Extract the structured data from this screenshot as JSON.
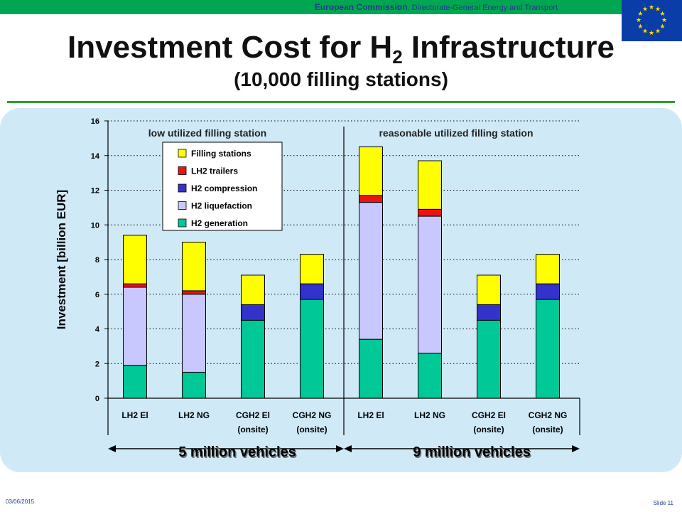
{
  "header": {
    "org": "European Commission",
    "dept": ", Directorate-General Energy and Transport"
  },
  "slide": {
    "title_main": "Investment Cost for H",
    "title_sub": "2",
    "title_end": " Infrastructure",
    "subtitle": "(10,000 filling stations)"
  },
  "footer": {
    "date": "03/06/2015",
    "slide": "Slide 11"
  },
  "colors": {
    "panel": "#cfe9f7",
    "header_green": "#00a651",
    "flag_blue": "#0b3da8",
    "flag_star": "#ffdd00"
  },
  "chart_data": {
    "type": "bar",
    "stacked": true,
    "ylabel": "Investment [billion EUR]",
    "ylim": [
      0,
      16
    ],
    "yticks": [
      0,
      2,
      4,
      6,
      8,
      10,
      12,
      14,
      16
    ],
    "grid": "dotted horizontal",
    "legend_position": "inside top-left",
    "groups": [
      {
        "label": "low utilized filling station",
        "xlabel": "5 million vehicles"
      },
      {
        "label": "reasonable utilized filling station",
        "xlabel": "9 million vehicles"
      }
    ],
    "categories": [
      [
        "LH2 El",
        ""
      ],
      [
        "LH2 NG",
        ""
      ],
      [
        "CGH2 El",
        "(onsite)"
      ],
      [
        "CGH2 NG",
        "(onsite)"
      ],
      [
        "LH2 El",
        ""
      ],
      [
        "LH2 NG",
        ""
      ],
      [
        "CGH2 El",
        "(onsite)"
      ],
      [
        "CGH2 NG",
        "(onsite)"
      ]
    ],
    "legend_order": [
      "Filling stations",
      "LH2 trailers",
      "H2 compression",
      "H2 liquefaction",
      "H2 generation"
    ],
    "series": [
      {
        "name": "H2 generation",
        "color": "#00c896",
        "values": [
          1.9,
          1.5,
          4.5,
          5.7,
          3.4,
          2.6,
          4.5,
          5.7
        ]
      },
      {
        "name": "H2 liquefaction",
        "color": "#c8c8ff",
        "values": [
          4.5,
          4.5,
          0,
          0,
          7.9,
          7.9,
          0,
          0
        ]
      },
      {
        "name": "H2 compression",
        "color": "#3333cc",
        "values": [
          0,
          0,
          0.9,
          0.9,
          0,
          0,
          0.9,
          0.9
        ]
      },
      {
        "name": "LH2 trailers",
        "color": "#ee1111",
        "values": [
          0.2,
          0.2,
          0,
          0,
          0.4,
          0.4,
          0,
          0
        ]
      },
      {
        "name": "Filling stations",
        "color": "#ffff00",
        "values": [
          2.8,
          2.8,
          1.7,
          1.7,
          2.8,
          2.8,
          1.7,
          1.7
        ]
      }
    ]
  }
}
